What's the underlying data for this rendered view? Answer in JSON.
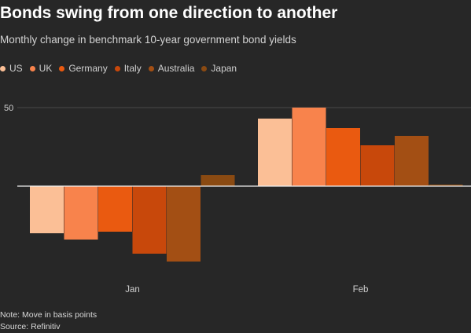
{
  "header": {
    "title": "Bonds swing from one direction to another",
    "subtitle": "Monthly change in benchmark 10-year government bond yields"
  },
  "legend": [
    {
      "label": "US",
      "color": "#fbbf96"
    },
    {
      "label": "UK",
      "color": "#f8834c"
    },
    {
      "label": "Germany",
      "color": "#ea5a10"
    },
    {
      "label": "Italy",
      "color": "#c8480b"
    },
    {
      "label": "Australia",
      "color": "#a34f14"
    },
    {
      "label": "Japan",
      "color": "#8a4a12"
    }
  ],
  "footer": {
    "note": "Note: Move in basis points",
    "source": "Source: Refinitiv"
  },
  "chart_data": {
    "type": "bar",
    "categories": [
      "Jan",
      "Feb"
    ],
    "series": [
      {
        "name": "US",
        "color": "#fbbf96",
        "values": [
          -30,
          43
        ]
      },
      {
        "name": "UK",
        "color": "#f8834c",
        "values": [
          -34,
          50
        ]
      },
      {
        "name": "Germany",
        "color": "#ea5a10",
        "values": [
          -29,
          37
        ]
      },
      {
        "name": "Italy",
        "color": "#c8480b",
        "values": [
          -43,
          26
        ]
      },
      {
        "name": "Australia",
        "color": "#a34f14",
        "values": [
          -48,
          32
        ]
      },
      {
        "name": "Japan",
        "color": "#8a4a12",
        "values": [
          7,
          1
        ]
      }
    ],
    "yticks": [
      50
    ],
    "ylim": [
      -50,
      50
    ],
    "grid": true
  }
}
